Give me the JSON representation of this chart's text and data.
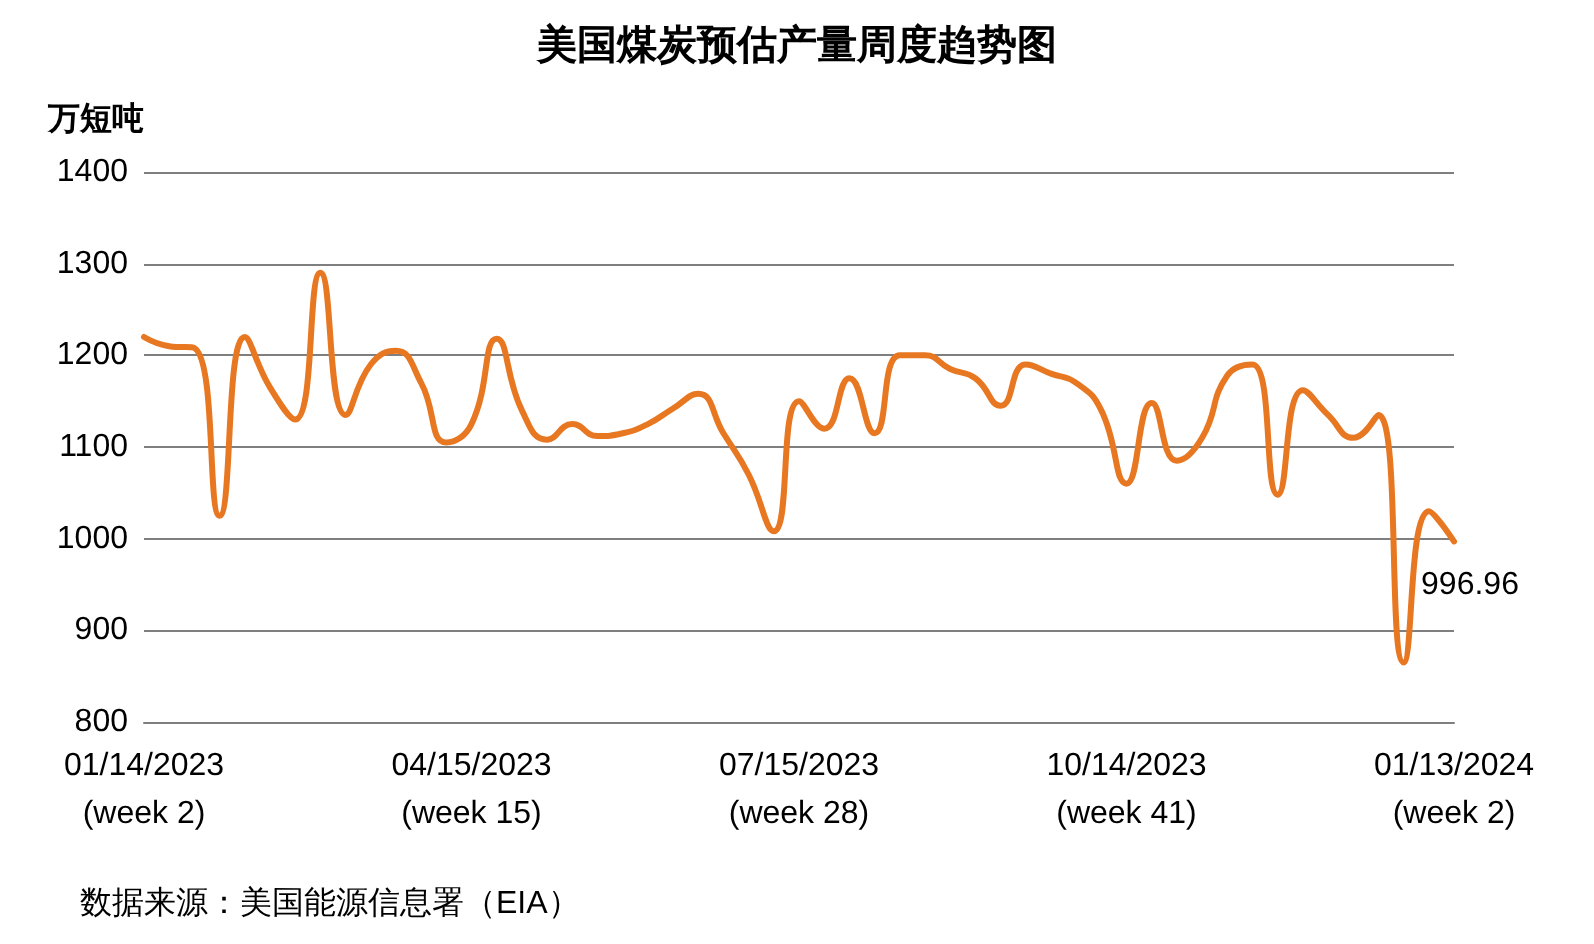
{
  "chart_data": {
    "type": "line",
    "title": "美国煤炭预估产量周度趋势图",
    "ylabel": "万短吨",
    "annotations": [
      "数据来源：美国能源信息署（EIA）"
    ],
    "categories": [
      "01/14/2023\n(week 2)",
      null,
      null,
      null,
      null,
      null,
      null,
      null,
      null,
      null,
      null,
      null,
      null,
      "04/15/2023\n(week 15)",
      null,
      null,
      null,
      null,
      null,
      null,
      null,
      null,
      null,
      null,
      null,
      null,
      "07/15/2023\n(week 28)",
      null,
      null,
      null,
      null,
      null,
      null,
      null,
      null,
      null,
      null,
      null,
      null,
      "10/14/2023\n(week 41)",
      null,
      null,
      null,
      null,
      null,
      null,
      null,
      null,
      null,
      null,
      null,
      null,
      "01/13/2024\n(week 2)"
    ],
    "series": [
      {
        "color": "#e87722",
        "values": [
          1220,
          1210,
          1208,
          1025,
          1220,
          1165,
          1130,
          1290,
          1135,
          1190,
          1205,
          1170,
          1105,
          1125,
          1218,
          1140,
          1108,
          1125,
          1112,
          1115,
          1125,
          1142,
          1158,
          1115,
          1070,
          1008,
          1150,
          1120,
          1175,
          1115,
          1200,
          1200,
          1185,
          1175,
          1145,
          1190,
          1180,
          1170,
          1140,
          1060,
          1148,
          1085,
          1110,
          1178,
          1190,
          1048,
          1162,
          1135,
          1110,
          1135,
          865,
          1030,
          996.96
        ],
        "value_labels": [
          null,
          null,
          null,
          null,
          null,
          null,
          null,
          null,
          null,
          null,
          null,
          null,
          null,
          null,
          null,
          null,
          null,
          null,
          null,
          null,
          null,
          null,
          null,
          null,
          null,
          null,
          null,
          null,
          null,
          null,
          null,
          null,
          null,
          null,
          null,
          null,
          null,
          null,
          null,
          null,
          null,
          null,
          null,
          null,
          null,
          null,
          null,
          null,
          null,
          null,
          null,
          null,
          "996.96"
        ]
      }
    ],
    "ylim": [
      800,
      1400
    ],
    "yticks": [
      800,
      900,
      1000,
      1100,
      1200,
      1300,
      1400
    ],
    "grid": "y",
    "marker": "none",
    "line_style": "solid"
  }
}
